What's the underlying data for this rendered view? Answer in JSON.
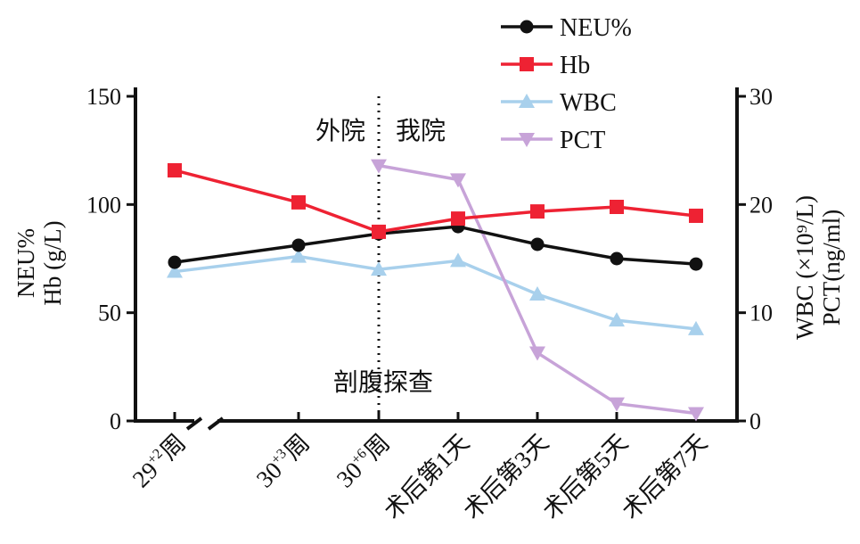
{
  "chart_data": {
    "type": "line",
    "categories": [
      "29+2周",
      "30+3周",
      "30+6周",
      "术后第1天",
      "术后第3天",
      "术后第5天",
      "术后第7天"
    ],
    "category_labels": [
      {
        "base": "29",
        "sup": "+2",
        "suffix": "周"
      },
      {
        "base": "30",
        "sup": "+3",
        "suffix": "周"
      },
      {
        "base": "30",
        "sup": "+6",
        "suffix": "周"
      },
      {
        "base": "术后第1天",
        "sup": "",
        "suffix": ""
      },
      {
        "base": "术后第3天",
        "sup": "",
        "suffix": ""
      },
      {
        "base": "术后第5天",
        "sup": "",
        "suffix": ""
      },
      {
        "base": "术后第7天",
        "sup": "",
        "suffix": ""
      }
    ],
    "left_axis": {
      "label_lines": [
        "NEU%",
        "Hb (g/L)"
      ],
      "ylim": [
        0,
        150
      ],
      "ticks": [
        0,
        50,
        100,
        150
      ]
    },
    "right_axis": {
      "label_lines": [
        "WBC (×10⁹/L)",
        "PCT(ng/ml)"
      ],
      "ylim": [
        0,
        30
      ],
      "ticks": [
        0,
        10,
        20,
        30
      ]
    },
    "series": [
      {
        "name": "NEU%",
        "axis": "left",
        "color": "#111111",
        "marker": "circle",
        "values": [
          73.3,
          81.2,
          86.5,
          89.8,
          81.6,
          75.0,
          72.5
        ]
      },
      {
        "name": "Hb",
        "axis": "left",
        "color": "#ee2233",
        "marker": "square",
        "values": [
          115.8,
          101.0,
          87.4,
          93.5,
          96.8,
          98.9,
          94.8
        ]
      },
      {
        "name": "WBC",
        "axis": "right",
        "color": "#a8d0ec",
        "marker": "triangle-up",
        "values": [
          13.8,
          15.2,
          14.0,
          14.8,
          11.7,
          9.3,
          8.5
        ]
      },
      {
        "name": "PCT",
        "axis": "right",
        "color": "#c7a3d8",
        "marker": "triangle-down",
        "values": [
          null,
          null,
          23.6,
          22.3,
          6.3,
          1.6,
          0.7
        ]
      }
    ],
    "annotations": {
      "left_of_line": "外院",
      "right_of_line": "我院",
      "event": "剖腹探查"
    },
    "legend_position": "top-right",
    "grid": false
  }
}
